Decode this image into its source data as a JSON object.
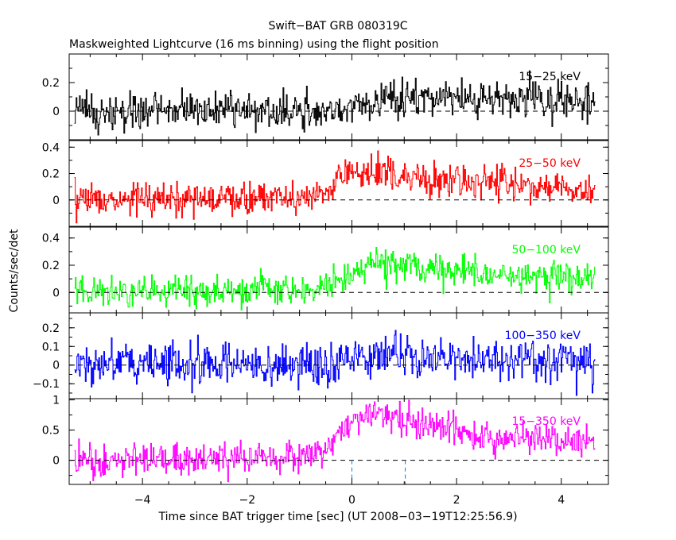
{
  "chart_data": {
    "type": "line",
    "title": "Swift−BAT GRB 080319C",
    "subtitle": "Maskweighted Lightcurve (16 ms binning) using the flight position",
    "xlabel": "Time since BAT trigger time [sec] (UT 2008−03−19T12:25:56.9)",
    "ylabel": "Counts/sec/det",
    "xlim": [
      -5.4,
      4.9
    ],
    "x_ticks": [
      -4,
      -2,
      0,
      2,
      4
    ],
    "x_tick_labels": [
      "−4",
      "−2",
      "0",
      "2",
      "4"
    ],
    "x_range_data": [
      -5.3,
      4.65
    ],
    "bin_width_s": 0.016,
    "vertical_markers": [
      0,
      1.02
    ],
    "panels": [
      {
        "name": "15−25 keV",
        "color": "#000000",
        "ylim": [
          -0.2,
          0.4
        ],
        "y_ticks": [
          0,
          0.2
        ],
        "y_tick_labels": [
          "0",
          "0.2"
        ],
        "trend": [
          [
            -5.3,
            0.0
          ],
          [
            -0.1,
            0.0
          ],
          [
            0.1,
            0.08
          ],
          [
            2.0,
            0.1
          ],
          [
            4.65,
            0.06
          ]
        ],
        "noise": 0.06
      },
      {
        "name": "25−50 keV",
        "color": "#ff0000",
        "ylim": [
          -0.2,
          0.45
        ],
        "y_ticks": [
          0,
          0.2,
          0.4
        ],
        "y_tick_labels": [
          "0",
          "0.2",
          "0.4"
        ],
        "trend": [
          [
            -5.3,
            0.0
          ],
          [
            -1.0,
            0.02
          ],
          [
            -0.35,
            0.06
          ],
          [
            -0.25,
            0.22
          ],
          [
            0.5,
            0.2
          ],
          [
            2.0,
            0.13
          ],
          [
            4.65,
            0.08
          ]
        ],
        "noise": 0.06
      },
      {
        "name": "50−100 keV",
        "color": "#00ff00",
        "ylim": [
          -0.15,
          0.48
        ],
        "y_ticks": [
          0,
          0.2,
          0.4
        ],
        "y_tick_labels": [
          "0",
          "0.2",
          "0.4"
        ],
        "trend": [
          [
            -5.3,
            0.0
          ],
          [
            -0.6,
            0.02
          ],
          [
            -0.2,
            0.1
          ],
          [
            0.4,
            0.22
          ],
          [
            1.0,
            0.2
          ],
          [
            2.5,
            0.12
          ],
          [
            4.65,
            0.1
          ]
        ],
        "noise": 0.055
      },
      {
        "name": "100−350 keV",
        "color": "#0000ff",
        "ylim": [
          -0.18,
          0.28
        ],
        "y_ticks": [
          -0.1,
          0,
          0.1,
          0.2
        ],
        "y_tick_labels": [
          "−0.1",
          "0",
          "0.1",
          "0.2"
        ],
        "trend": [
          [
            -5.3,
            0.0
          ],
          [
            -0.3,
            0.0
          ],
          [
            0.0,
            0.05
          ],
          [
            1.5,
            0.04
          ],
          [
            4.65,
            0.02
          ]
        ],
        "noise": 0.055
      },
      {
        "name": "15−350 keV",
        "color": "#ff00ff",
        "ylim": [
          -0.4,
          1.02
        ],
        "y_ticks": [
          0,
          0.5,
          1
        ],
        "y_tick_labels": [
          "0",
          "0.5",
          "1"
        ],
        "trend": [
          [
            -5.3,
            0.0
          ],
          [
            -1.0,
            0.03
          ],
          [
            -0.6,
            0.1
          ],
          [
            0.0,
            0.65
          ],
          [
            0.5,
            0.82
          ],
          [
            1.5,
            0.6
          ],
          [
            2.5,
            0.4
          ],
          [
            4.65,
            0.28
          ]
        ],
        "noise": 0.13
      }
    ]
  }
}
